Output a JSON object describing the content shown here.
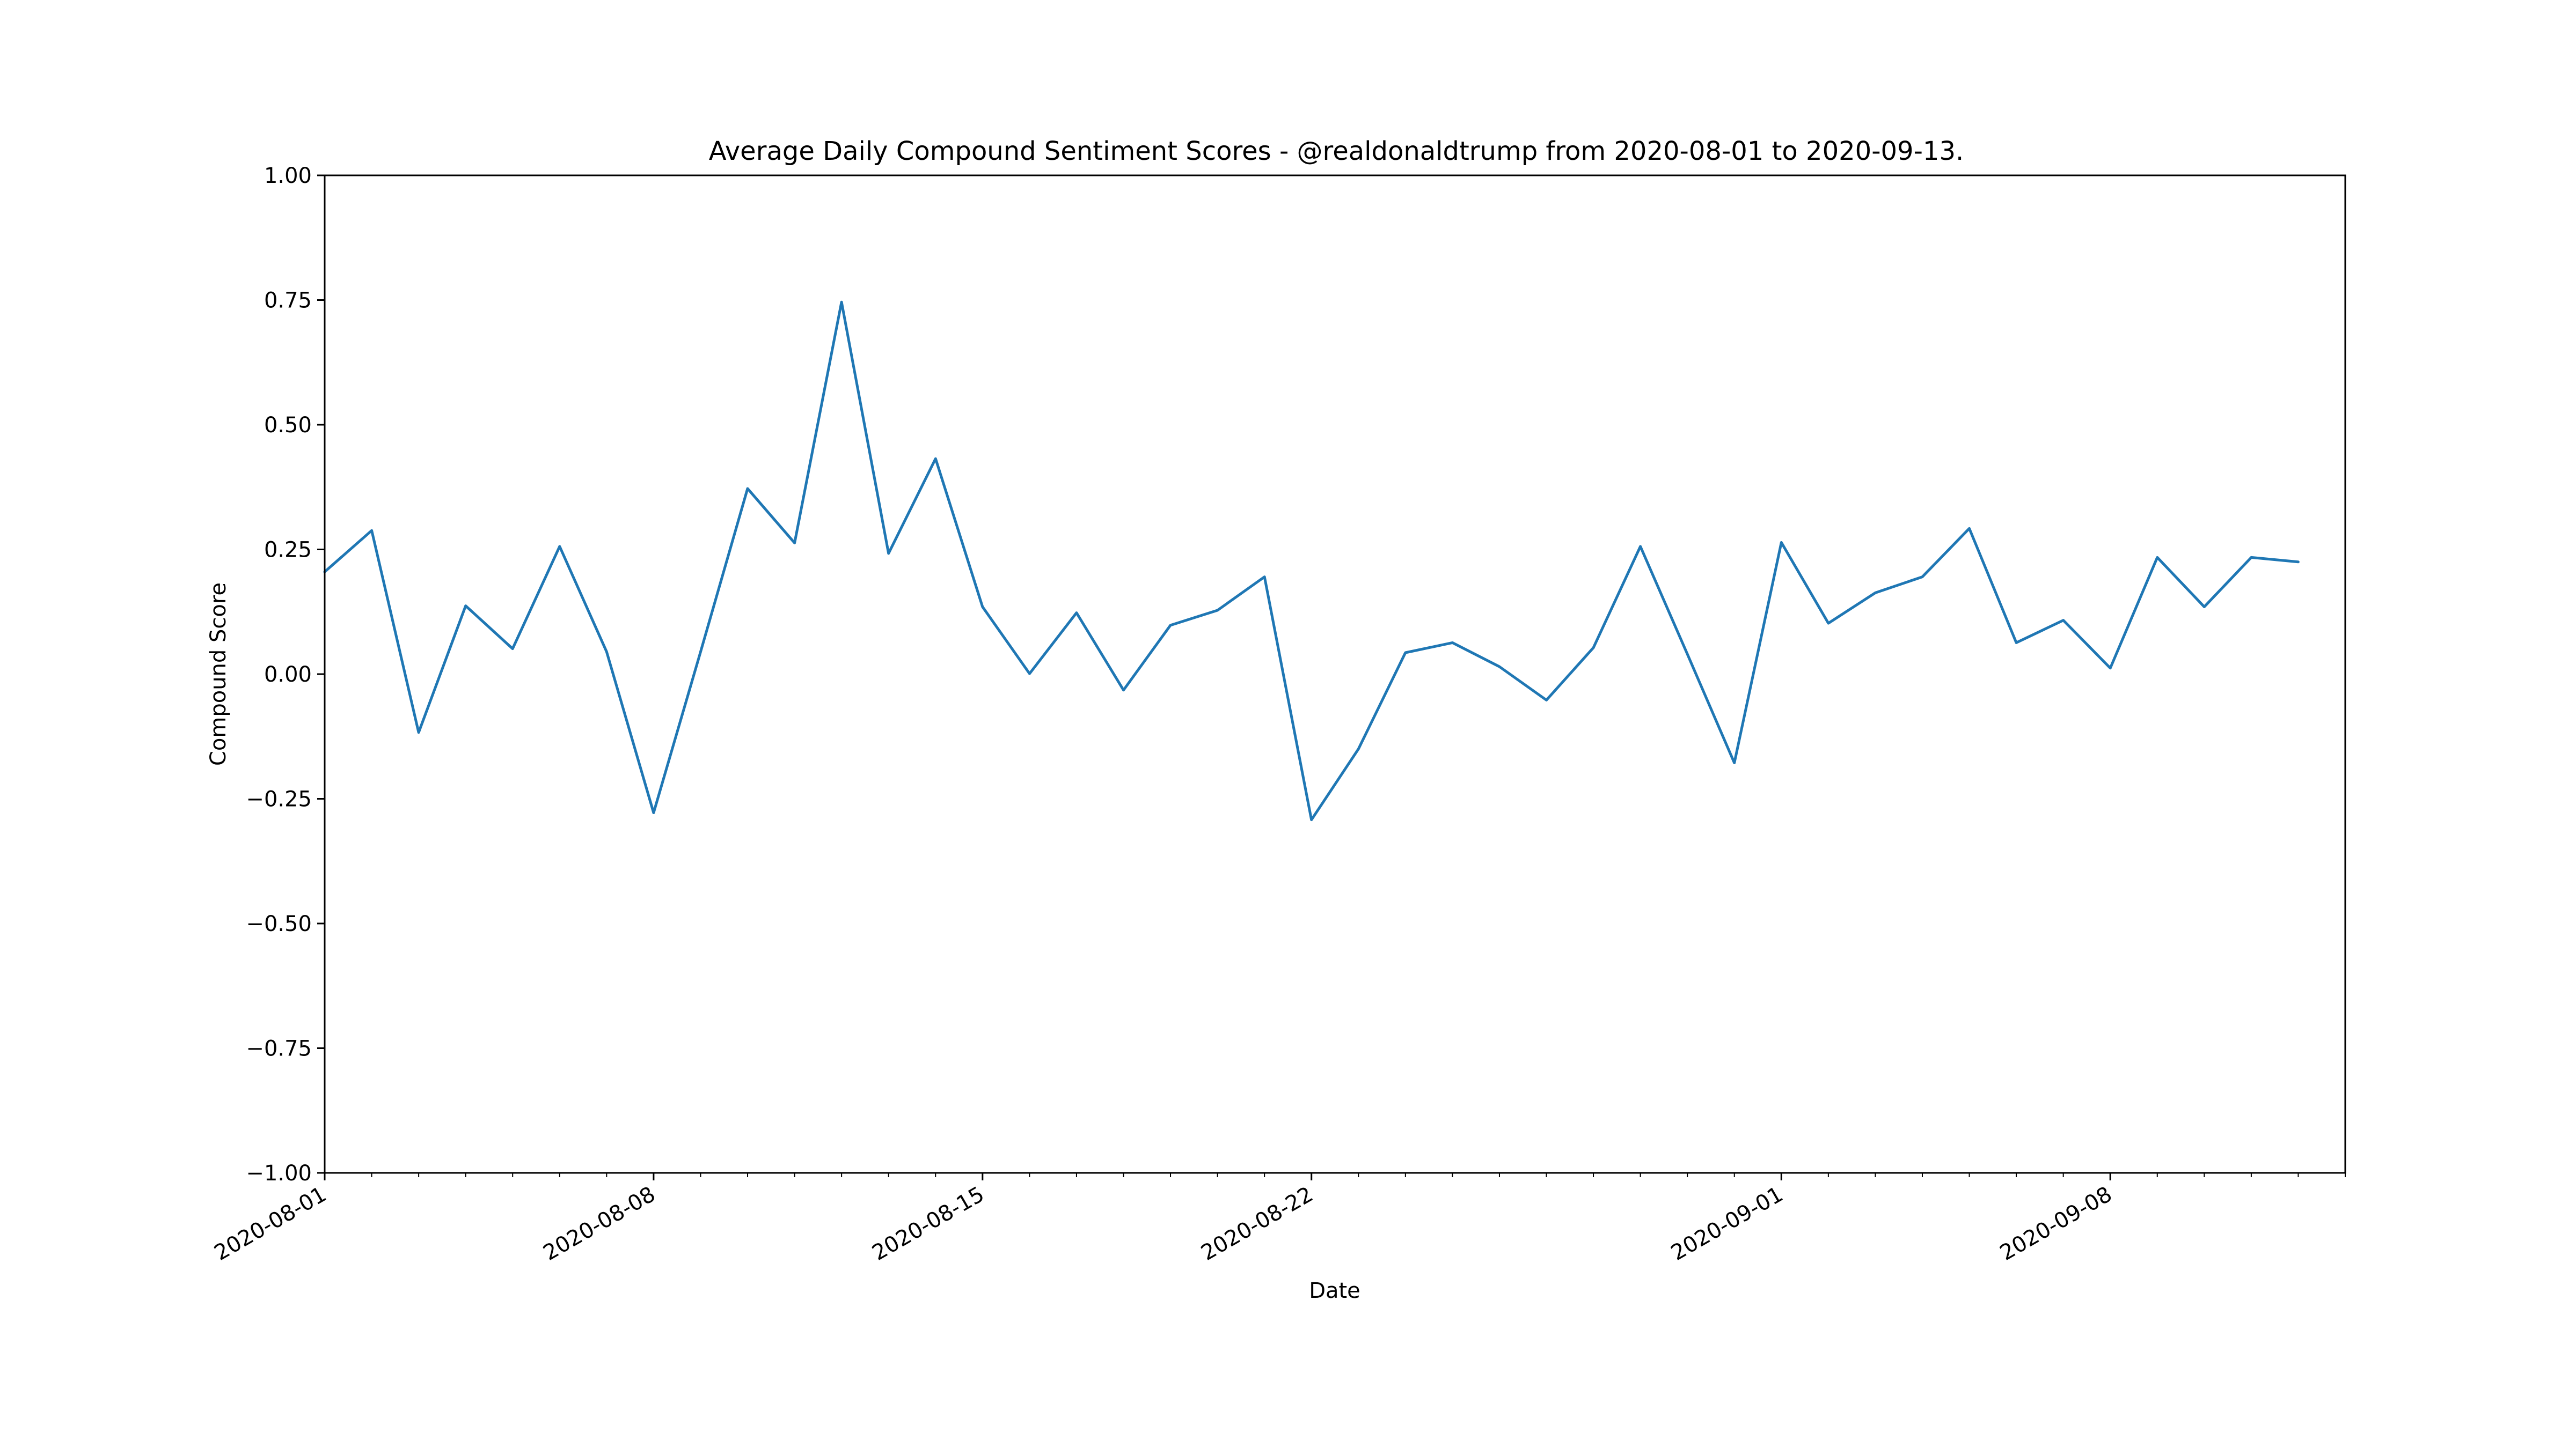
{
  "chart_data": {
    "type": "line",
    "title": "Average Daily Compound Sentiment Scores - @realdonaldtrump from 2020-08-01 to 2020-09-13.",
    "xlabel": "Date",
    "ylabel": "Compound Score",
    "ylim": [
      -1.0,
      1.0
    ],
    "xlim": [
      "2020-08-01",
      "2020-09-13"
    ],
    "grid": false,
    "line_color": "#1f77b4",
    "y_ticks": [
      {
        "value": -1.0,
        "label": "−1.00"
      },
      {
        "value": -0.75,
        "label": "−0.75"
      },
      {
        "value": -0.5,
        "label": "−0.50"
      },
      {
        "value": -0.25,
        "label": "−0.25"
      },
      {
        "value": 0.0,
        "label": "0.00"
      },
      {
        "value": 0.25,
        "label": "0.25"
      },
      {
        "value": 0.5,
        "label": "0.50"
      },
      {
        "value": 0.75,
        "label": "0.75"
      },
      {
        "value": 1.0,
        "label": "1.00"
      }
    ],
    "x_ticks": [
      {
        "value": "2020-08-01",
        "label": "2020-08-01"
      },
      {
        "value": "2020-08-08",
        "label": "2020-08-08"
      },
      {
        "value": "2020-08-15",
        "label": "2020-08-15"
      },
      {
        "value": "2020-08-22",
        "label": "2020-08-22"
      },
      {
        "value": "2020-09-01",
        "label": "2020-09-01"
      },
      {
        "value": "2020-09-08",
        "label": "2020-09-08"
      }
    ],
    "x": [
      "2020-08-01",
      "2020-08-02",
      "2020-08-03",
      "2020-08-04",
      "2020-08-05",
      "2020-08-06",
      "2020-08-07",
      "2020-08-08",
      "2020-08-09",
      "2020-08-10",
      "2020-08-11",
      "2020-08-12",
      "2020-08-13",
      "2020-08-14",
      "2020-08-15",
      "2020-08-16",
      "2020-08-17",
      "2020-08-18",
      "2020-08-19",
      "2020-08-20",
      "2020-08-21",
      "2020-08-22",
      "2020-08-23",
      "2020-08-24",
      "2020-08-25",
      "2020-08-26",
      "2020-08-27",
      "2020-08-28",
      "2020-08-29",
      "2020-08-30",
      "2020-08-31",
      "2020-09-01",
      "2020-09-02",
      "2020-09-03",
      "2020-09-04",
      "2020-09-05",
      "2020-09-06",
      "2020-09-07",
      "2020-09-08",
      "2020-09-09",
      "2020-09-10",
      "2020-09-11",
      "2020-09-12"
    ],
    "series": [
      {
        "values": [
          0.205,
          0.288,
          -0.117,
          0.137,
          0.051,
          0.256,
          0.045,
          -0.278,
          0.045,
          0.372,
          0.263,
          0.746,
          0.242,
          0.432,
          0.135,
          0.001,
          0.123,
          -0.032,
          0.098,
          0.128,
          0.195,
          -0.292,
          -0.15,
          0.043,
          0.063,
          0.015,
          -0.052,
          0.053,
          0.256,
          0.04,
          -0.178,
          0.264,
          0.102,
          0.163,
          0.195,
          0.292,
          0.063,
          0.108,
          0.012,
          0.234,
          0.135,
          0.234,
          0.225
        ]
      }
    ]
  }
}
